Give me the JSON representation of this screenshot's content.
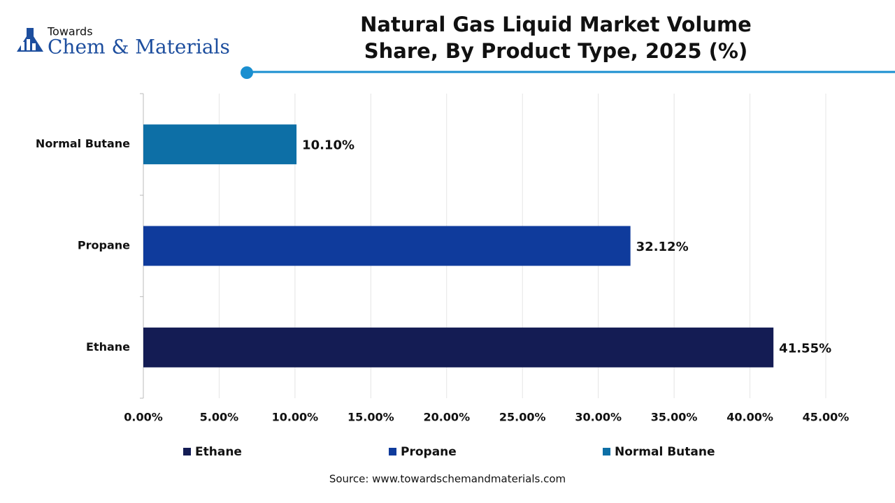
{
  "logo": {
    "top": "Towards",
    "bottom": "Chem & Materials"
  },
  "chart_data": {
    "type": "barh",
    "title": "Natural Gas Liquid Market Volume Share, By Product Type, 2025 (%)",
    "categories": [
      "Ethane",
      "Propane",
      "Normal Butane"
    ],
    "values": [
      41.55,
      32.12,
      10.1
    ],
    "value_labels": [
      "41.55%",
      "32.12%",
      "10.10%"
    ],
    "colors": [
      "#141c54",
      "#0f3b9c",
      "#0d6fa6"
    ],
    "xlim": [
      0,
      45
    ],
    "xticks": [
      {
        "value": 0,
        "label": "0.00%"
      },
      {
        "value": 5,
        "label": "5.00%"
      },
      {
        "value": 10,
        "label": "10.00%"
      },
      {
        "value": 15,
        "label": "15.00%"
      },
      {
        "value": 20,
        "label": "20.00%"
      },
      {
        "value": 25,
        "label": "25.00%"
      },
      {
        "value": 30,
        "label": "30.00%"
      },
      {
        "value": 35,
        "label": "35.00%"
      },
      {
        "value": 40,
        "label": "40.00%"
      },
      {
        "value": 45,
        "label": "45.00%"
      }
    ],
    "grid": true,
    "source": "Source: www.towardschemandmaterials.com"
  }
}
